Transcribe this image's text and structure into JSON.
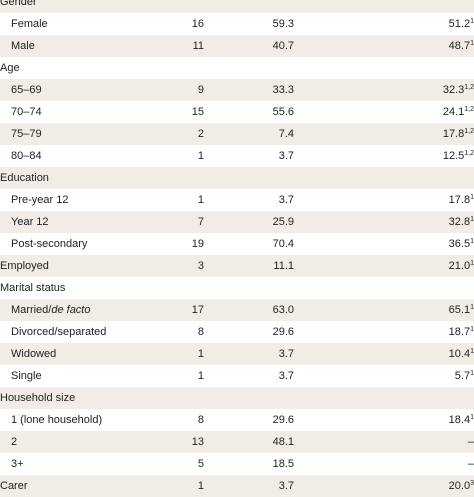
{
  "rows": [
    {
      "kind": "header",
      "label": "Gender"
    },
    {
      "kind": "item",
      "label": "Female",
      "n": "16",
      "pct": "59.3",
      "ref": "51.2",
      "sup": "1"
    },
    {
      "kind": "item",
      "label": "Male",
      "n": "11",
      "pct": "40.7",
      "ref": "48.7",
      "sup": "1"
    },
    {
      "kind": "header",
      "label": "Age"
    },
    {
      "kind": "item",
      "label": "65–69",
      "n": "9",
      "pct": "33.3",
      "ref": "32.3",
      "sup": "1,2"
    },
    {
      "kind": "item",
      "label": "70–74",
      "n": "15",
      "pct": "55.6",
      "ref": "24.1",
      "sup": "1,2"
    },
    {
      "kind": "item",
      "label": "75–79",
      "n": "2",
      "pct": "7.4",
      "ref": "17.8",
      "sup": "1,2"
    },
    {
      "kind": "item",
      "label": "80–84",
      "n": "1",
      "pct": "3.7",
      "ref": "12.5",
      "sup": "1,2"
    },
    {
      "kind": "header",
      "label": "Education"
    },
    {
      "kind": "item",
      "label": "Pre-year 12",
      "n": "1",
      "pct": "3.7",
      "ref": "17.8",
      "sup": "1"
    },
    {
      "kind": "item",
      "label": "Year 12",
      "n": "7",
      "pct": "25.9",
      "ref": "32.8",
      "sup": "1"
    },
    {
      "kind": "item",
      "label": "Post-secondary",
      "n": "19",
      "pct": "70.4",
      "ref": "36.5",
      "sup": "1"
    },
    {
      "kind": "total",
      "label": "Employed",
      "n": "3",
      "pct": "11.1",
      "ref": "21.0",
      "sup": "1"
    },
    {
      "kind": "header",
      "label": "Marital status"
    },
    {
      "kind": "item",
      "label": "Married/",
      "label_em": "de facto",
      "n": "17",
      "pct": "63.0",
      "ref": "65.1",
      "sup": "1"
    },
    {
      "kind": "item",
      "label": "Divorced/separated",
      "n": "8",
      "pct": "29.6",
      "ref": "18.7",
      "sup": "1"
    },
    {
      "kind": "item",
      "label": "Widowed",
      "n": "1",
      "pct": "3.7",
      "ref": "10.4",
      "sup": "1"
    },
    {
      "kind": "item",
      "label": "Single",
      "n": "1",
      "pct": "3.7",
      "ref": "5.7",
      "sup": "1"
    },
    {
      "kind": "header",
      "label": "Household size"
    },
    {
      "kind": "item",
      "label": "1 (lone household)",
      "n": "8",
      "pct": "29.6",
      "ref": "18.4",
      "sup": "1"
    },
    {
      "kind": "item",
      "label": "2",
      "n": "13",
      "pct": "48.1",
      "ref": "–"
    },
    {
      "kind": "item",
      "label": "3+",
      "n": "5",
      "pct": "18.5",
      "ref": "–"
    },
    {
      "kind": "total",
      "label": "Carer",
      "n": "1",
      "pct": "3.7",
      "ref": "20.0",
      "sup": "3"
    }
  ],
  "colors": {
    "shade": "#f1ece6",
    "text": "#222222"
  }
}
